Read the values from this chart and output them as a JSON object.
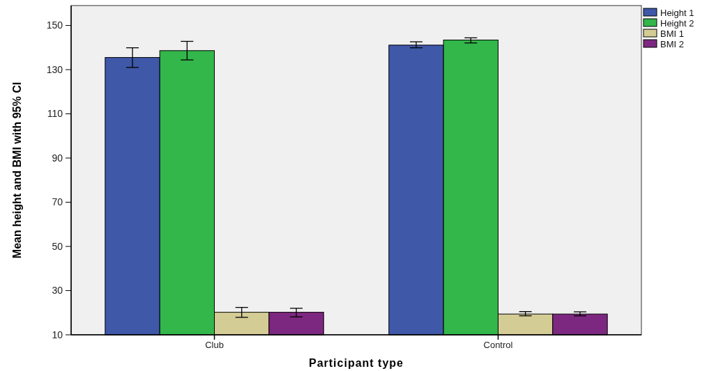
{
  "chart_data": {
    "type": "bar",
    "xlabel": "Participant type",
    "ylabel": "Mean height and BMI with 95% CI",
    "categories": [
      "Club",
      "Control"
    ],
    "series": [
      {
        "name": "Height 1",
        "color": "#3f58a8",
        "values": [
          135.5,
          141.1
        ],
        "errors": [
          [
            131.0,
            139.9
          ],
          [
            139.9,
            142.6
          ]
        ]
      },
      {
        "name": "Height 2",
        "color": "#33b64a",
        "values": [
          138.6,
          143.4
        ],
        "errors": [
          [
            134.4,
            142.8
          ],
          [
            142.1,
            144.4
          ]
        ]
      },
      {
        "name": "BMI 1",
        "color": "#d4cc95",
        "values": [
          20.2,
          19.4
        ],
        "errors": [
          [
            17.9,
            22.4
          ],
          [
            18.6,
            20.5
          ]
        ]
      },
      {
        "name": "BMI 2",
        "color": "#7d2880",
        "values": [
          20.2,
          19.4
        ],
        "errors": [
          [
            18.1,
            22.0
          ],
          [
            18.6,
            20.4
          ]
        ]
      }
    ],
    "ylim": [
      10,
      159
    ],
    "yticks": [
      10,
      30,
      50,
      70,
      90,
      110,
      130,
      150
    ],
    "grid": false,
    "legend": "top right"
  }
}
